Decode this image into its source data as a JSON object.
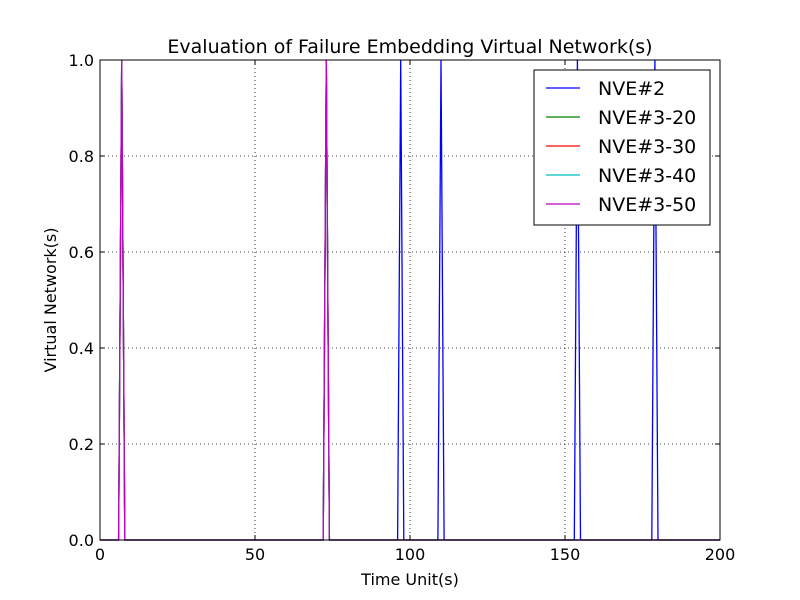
{
  "chart_data": {
    "type": "line",
    "title": "Evaluation of Failure Embedding Virtual Network(s)",
    "xlabel": "Time Unit(s)",
    "ylabel": "Virtual Network(s)",
    "xlim": [
      0,
      200
    ],
    "ylim": [
      0,
      1.0
    ],
    "xticks": [
      0,
      50,
      100,
      150,
      200
    ],
    "xtick_labels": [
      "0",
      "50",
      "100",
      "150",
      "200"
    ],
    "yticks": [
      0,
      0.2,
      0.4,
      0.6,
      0.8,
      1.0
    ],
    "ytick_labels": [
      "0.0",
      "0.2",
      "0.4",
      "0.6",
      "0.8",
      "1.0"
    ],
    "grid": true,
    "legend_position": "top-right",
    "series": [
      {
        "name": "NVE#2",
        "color": "#0000ff",
        "x": [
          0,
          6,
          7,
          8,
          72,
          73,
          74,
          96,
          97,
          98,
          109,
          110,
          111,
          153,
          154,
          155,
          178,
          179,
          180,
          200
        ],
        "y": [
          0,
          0,
          1,
          0,
          0,
          1,
          0,
          0,
          1,
          0,
          0,
          1,
          0,
          0,
          1,
          0,
          0,
          1,
          0,
          0
        ]
      },
      {
        "name": "NVE#3-20",
        "color": "#008000",
        "x": [
          0,
          6,
          7,
          8,
          72,
          73,
          74,
          200
        ],
        "y": [
          0,
          0,
          1,
          0,
          0,
          1,
          0,
          0
        ]
      },
      {
        "name": "NVE#3-30",
        "color": "#ff0000",
        "x": [
          0,
          6,
          7,
          8,
          72,
          73,
          74,
          200
        ],
        "y": [
          0,
          0,
          1,
          0,
          0,
          1,
          0,
          0
        ]
      },
      {
        "name": "NVE#3-40",
        "color": "#00bfbf",
        "x": [
          0,
          6,
          7,
          8,
          72,
          73,
          74,
          200
        ],
        "y": [
          0,
          0,
          1,
          0,
          0,
          1,
          0,
          0
        ]
      },
      {
        "name": "NVE#3-50",
        "color": "#bf00bf",
        "x": [
          0,
          6,
          7,
          8,
          72,
          73,
          74,
          200
        ],
        "y": [
          0,
          0,
          1,
          0,
          0,
          1,
          0,
          0
        ]
      }
    ]
  }
}
